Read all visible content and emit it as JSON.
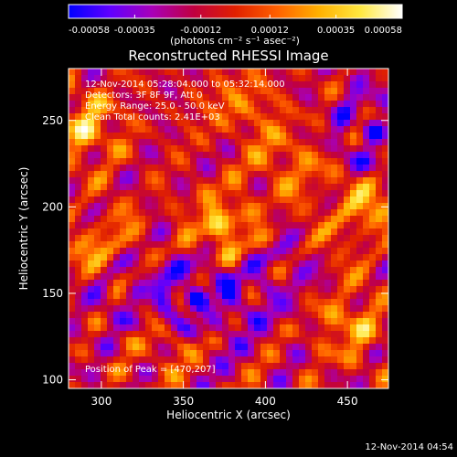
{
  "colorbar": {
    "tick_labels": [
      "-0.00058",
      "-0.00035",
      "-0.00012",
      "0.00012",
      "0.00035",
      "0.00058"
    ],
    "tick_values": [
      -0.00058,
      -0.00035,
      -0.00012,
      0.00012,
      0.00035,
      0.00058
    ],
    "range": [
      -0.00058,
      0.00058
    ],
    "unit_label": "(photons cm⁻² s⁻¹ asec⁻²)",
    "colors": [
      "#0000ff",
      "#6000ff",
      "#a800b8",
      "#c00040",
      "#e02000",
      "#ff6000",
      "#ffb000",
      "#ffe840",
      "#ffffff"
    ]
  },
  "chart_data": {
    "type": "heatmap",
    "title": "Reconstructed RHESSI Image",
    "xlabel": "Heliocentric X (arcsec)",
    "ylabel": "Heliocentric Y (arcsec)",
    "xlim": [
      280,
      475
    ],
    "ylim": [
      95,
      280
    ],
    "x_ticks": [
      300,
      350,
      400,
      450
    ],
    "y_ticks": [
      100,
      150,
      200,
      250
    ],
    "x_tick_labels": [
      "300",
      "350",
      "400",
      "450"
    ],
    "y_tick_labels": [
      "100",
      "150",
      "200",
      "250"
    ],
    "peak": [
      470,
      207
    ],
    "annotations": {
      "time_range": "12-Nov-2014 05:28:04.000 to 05:32:14.000",
      "detectors": "Detectors: 3F 8F 9F, Att 0",
      "energy": "Energy Range: 25.0 - 50.0 keV",
      "method": "Clean    Total counts: 2.41E+03",
      "peak_label": "Position of Peak = [470,207]"
    },
    "colormap": "rainbow (blue-purple-red-orange-yellow-white)",
    "grid": false
  },
  "footer": {
    "timestamp": "12-Nov-2014 04:54"
  }
}
